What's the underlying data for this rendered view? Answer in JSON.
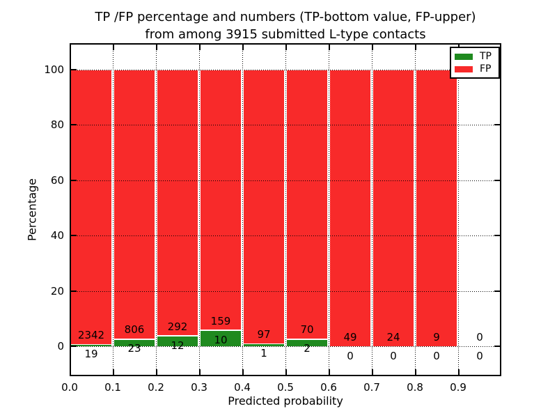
{
  "figure": {
    "title_line1": "TP /FP percentage and numbers (TP-bottom value, FP-upper)",
    "title_line2": "from among 3915 submitted L-type contacts"
  },
  "axes": {
    "xlabel": "Predicted probability",
    "ylabel": "Percentage",
    "x_tick_labels": [
      "0.0",
      "0.1",
      "0.2",
      "0.3",
      "0.4",
      "0.5",
      "0.6",
      "0.7",
      "0.8",
      "0.9"
    ],
    "y_tick_labels": [
      "0",
      "20",
      "40",
      "60",
      "80",
      "100"
    ],
    "y_tick_values": [
      0,
      20,
      40,
      60,
      80,
      100
    ]
  },
  "legend": {
    "entries": [
      {
        "label": "TP",
        "color": "#1f8a1f"
      },
      {
        "label": "FP",
        "color": "#f82a2a"
      }
    ]
  },
  "chart_data": {
    "type": "bar",
    "stacked": true,
    "title": "TP /FP percentage and numbers (TP-bottom value, FP-upper) from among 3915 submitted L-type contacts",
    "xlabel": "Predicted probability",
    "ylabel": "Percentage",
    "total_submitted": 3915,
    "bin_width": 0.1,
    "bin_starts": [
      0.0,
      0.1,
      0.2,
      0.3,
      0.4,
      0.5,
      0.6,
      0.7,
      0.8,
      0.9
    ],
    "series": [
      {
        "name": "TP",
        "color": "#1f8a1f",
        "counts": [
          19,
          23,
          12,
          10,
          1,
          2,
          0,
          0,
          0,
          0
        ],
        "pct": [
          0.8,
          2.8,
          3.9,
          5.9,
          1.0,
          2.8,
          0.0,
          0.0,
          0.0,
          null
        ]
      },
      {
        "name": "FP",
        "color": "#f82a2a",
        "counts": [
          2342,
          806,
          292,
          159,
          97,
          70,
          49,
          24,
          9,
          0
        ],
        "pct": [
          99.2,
          97.2,
          96.1,
          94.1,
          99.0,
          97.2,
          100.0,
          100.0,
          100.0,
          null
        ]
      }
    ],
    "xlim": [
      0.0,
      1.0
    ],
    "ylim": [
      -10.8,
      109.4
    ],
    "grid": true,
    "grid_style": "dotted",
    "legend_position": "upper right",
    "annotation_note": "FP count printed above each bar's green segment, TP count printed below it"
  }
}
